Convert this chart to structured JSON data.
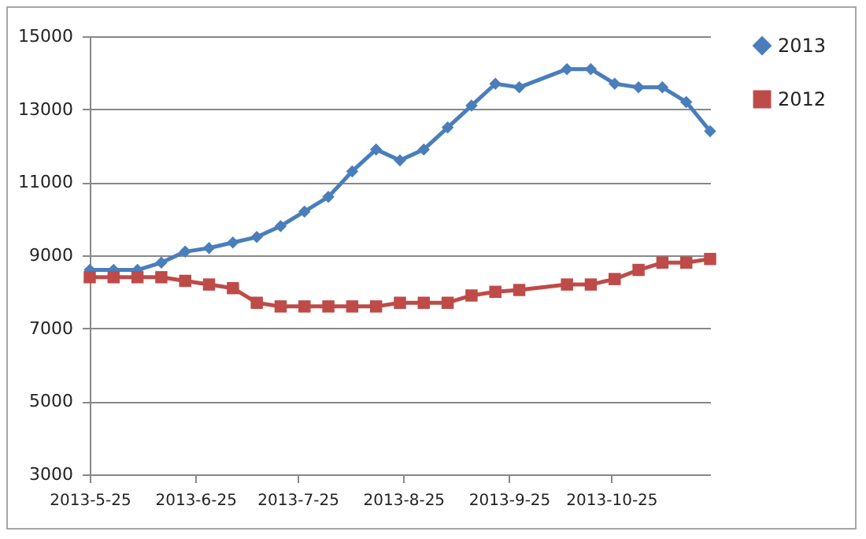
{
  "chart_data": {
    "type": "line",
    "x": [
      "2013-05-25",
      "2013-06-01",
      "2013-06-08",
      "2013-06-15",
      "2013-06-22",
      "2013-06-29",
      "2013-07-06",
      "2013-07-13",
      "2013-07-20",
      "2013-07-27",
      "2013-08-03",
      "2013-08-10",
      "2013-08-17",
      "2013-08-24",
      "2013-08-31",
      "2013-09-07",
      "2013-09-14",
      "2013-09-21",
      "2013-09-28",
      "2013-10-12",
      "2013-10-19",
      "2013-10-26",
      "2013-11-02",
      "2013-11-09",
      "2013-11-16",
      "2013-11-23"
    ],
    "series": [
      {
        "name": "2013",
        "color": "#4a7ebb",
        "marker": "diamond",
        "values": [
          8600,
          8600,
          8600,
          8800,
          9100,
          9200,
          9350,
          9500,
          9800,
          10200,
          10600,
          11300,
          11900,
          11600,
          11900,
          12500,
          13100,
          13700,
          13600,
          14100,
          14100,
          13700,
          13600,
          13600,
          13200,
          12400
        ]
      },
      {
        "name": "2012",
        "color": "#be4b48",
        "marker": "square",
        "values": [
          8400,
          8400,
          8400,
          8400,
          8300,
          8200,
          8100,
          7700,
          7600,
          7600,
          7600,
          7600,
          7600,
          7700,
          7700,
          7700,
          7900,
          8000,
          8050,
          8200,
          8200,
          8350,
          8600,
          8800,
          8800,
          8900
        ]
      }
    ],
    "xlim": [
      "2013-05-25",
      "2013-11-23"
    ],
    "xticks": [
      {
        "value": "2013-05-25",
        "label": "2013-5-25"
      },
      {
        "value": "2013-06-25",
        "label": "2013-6-25"
      },
      {
        "value": "2013-07-25",
        "label": "2013-7-25"
      },
      {
        "value": "2013-08-25",
        "label": "2013-8-25"
      },
      {
        "value": "2013-09-25",
        "label": "2013-9-25"
      },
      {
        "value": "2013-10-25",
        "label": "2013-10-25"
      }
    ],
    "ylim": [
      3000,
      15000
    ],
    "yticks": [
      3000,
      5000,
      7000,
      9000,
      11000,
      13000,
      15000
    ],
    "grid": "y",
    "legend": "right",
    "line_style": "solid"
  }
}
